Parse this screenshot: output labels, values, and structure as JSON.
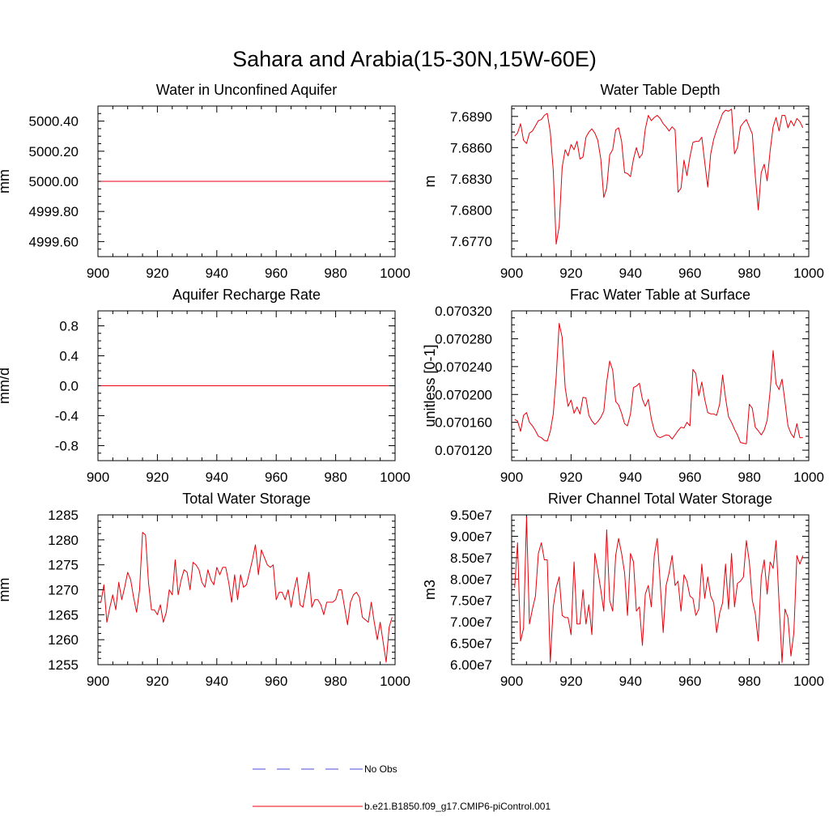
{
  "figure": {
    "title": "Sahara and Arabia(15-30N,15W-60E)"
  },
  "legend": {
    "entries": [
      {
        "label": "No Obs",
        "color": "#4b4bd8",
        "dash": true
      },
      {
        "label": "b.e21.B1850.f09_g17.CMIP6-piControl.001",
        "color": "#e8000b",
        "dash": false
      }
    ]
  },
  "chart_data": [
    {
      "type": "line",
      "title": "Water in Unconfined Aquifer",
      "ylabel": "mm",
      "xlim": [
        900,
        1000
      ],
      "ylim": [
        4999.5,
        5000.5
      ],
      "xticks": [
        900,
        920,
        940,
        960,
        980,
        1000
      ],
      "xtick_labels": [
        "900",
        "920",
        "940",
        "960",
        "980",
        "1000"
      ],
      "yticks": [
        4999.6,
        4999.8,
        5000.0,
        5000.2,
        5000.4
      ],
      "ytick_labels": [
        "4999.60",
        "4999.80",
        "5000.00",
        "5000.20",
        "5000.40"
      ],
      "series": [
        {
          "color": "#e8000b",
          "x_start": 901,
          "x_step": 1,
          "values": [
            5000.0,
            5000.0,
            5000.0,
            5000.0,
            5000.0,
            5000.0,
            5000.0,
            5000.0,
            5000.0,
            5000.0,
            5000.0,
            5000.0,
            5000.0,
            5000.0,
            5000.0,
            5000.0,
            5000.0,
            5000.0,
            5000.0,
            5000.0,
            5000.0,
            5000.0,
            5000.0,
            5000.0,
            5000.0,
            5000.0,
            5000.0,
            5000.0,
            5000.0,
            5000.0,
            5000.0,
            5000.0,
            5000.0,
            5000.0,
            5000.0,
            5000.0,
            5000.0,
            5000.0,
            5000.0,
            5000.0,
            5000.0,
            5000.0,
            5000.0,
            5000.0,
            5000.0,
            5000.0,
            5000.0,
            5000.0,
            5000.0,
            5000.0,
            5000.0,
            5000.0,
            5000.0,
            5000.0,
            5000.0,
            5000.0,
            5000.0,
            5000.0,
            5000.0,
            5000.0,
            5000.0,
            5000.0,
            5000.0,
            5000.0,
            5000.0,
            5000.0,
            5000.0,
            5000.0,
            5000.0,
            5000.0,
            5000.0,
            5000.0,
            5000.0,
            5000.0,
            5000.0,
            5000.0,
            5000.0,
            5000.0,
            5000.0,
            5000.0,
            5000.0,
            5000.0,
            5000.0,
            5000.0,
            5000.0,
            5000.0,
            5000.0,
            5000.0,
            5000.0,
            5000.0,
            5000.0,
            5000.0,
            5000.0,
            5000.0,
            5000.0,
            5000.0,
            5000.0,
            5000.0
          ]
        }
      ]
    },
    {
      "type": "line",
      "title": "Water Table Depth",
      "ylabel": "m",
      "xlim": [
        900,
        1000
      ],
      "ylim": [
        7.6755,
        7.69
      ],
      "xticks": [
        900,
        920,
        940,
        960,
        980,
        1000
      ],
      "xtick_labels": [
        "900",
        "920",
        "940",
        "960",
        "980",
        "1000"
      ],
      "yticks": [
        7.677,
        7.68,
        7.683,
        7.686,
        7.689
      ],
      "ytick_labels": [
        "7.6770",
        "7.6800",
        "7.6830",
        "7.6860",
        "7.6890"
      ],
      "series": [
        {
          "color": "#e8000b",
          "x_start": 901,
          "x_step": 1,
          "values": [
            7.6871,
            7.6874,
            7.6883,
            7.6867,
            7.6864,
            7.6874,
            7.6876,
            7.6881,
            7.6886,
            7.6887,
            7.6891,
            7.6893,
            7.6875,
            7.6838,
            7.6767,
            7.6784,
            7.6841,
            7.6858,
            7.6852,
            7.6863,
            7.6858,
            7.6866,
            7.6849,
            7.6851,
            7.687,
            7.6875,
            7.6878,
            7.6874,
            7.6867,
            7.6849,
            7.6812,
            7.6821,
            7.6853,
            7.6858,
            7.6877,
            7.6879,
            7.6866,
            7.6836,
            7.6835,
            7.6832,
            7.6849,
            7.686,
            7.685,
            7.6854,
            7.6878,
            7.6891,
            7.6886,
            7.6889,
            7.6891,
            7.6888,
            7.6883,
            7.688,
            7.6876,
            7.688,
            7.6877,
            7.6817,
            7.6821,
            7.6848,
            7.6833,
            7.6851,
            7.6865,
            7.6866,
            7.6866,
            7.687,
            7.6846,
            7.6822,
            7.6854,
            7.6868,
            7.6877,
            7.6885,
            7.6893,
            7.6896,
            7.6895,
            7.6897,
            7.6854,
            7.686,
            7.688,
            7.6884,
            7.6887,
            7.688,
            7.6873,
            7.6833,
            7.68,
            7.6836,
            7.6844,
            7.6828,
            7.6857,
            7.688,
            7.6889,
            7.6876,
            7.6891,
            7.6891,
            7.6879,
            7.6886,
            7.6881,
            7.6888,
            7.6885,
            7.6879
          ]
        }
      ]
    },
    {
      "type": "line",
      "title": "Aquifer Recharge Rate",
      "ylabel": "mm/d",
      "xlim": [
        900,
        1000
      ],
      "ylim": [
        -1.0,
        1.0
      ],
      "xticks": [
        900,
        920,
        940,
        960,
        980,
        1000
      ],
      "xtick_labels": [
        "900",
        "920",
        "940",
        "960",
        "980",
        "1000"
      ],
      "yticks": [
        -0.8,
        -0.4,
        0.0,
        0.4,
        0.8
      ],
      "ytick_labels": [
        "-0.8",
        "-0.4",
        "0.0",
        "0.4",
        "0.8"
      ],
      "series": [
        {
          "color": "#e8000b",
          "x_start": 901,
          "x_step": 1,
          "values": [
            0.0,
            0.0,
            0.0,
            0.0,
            0.0,
            0.0,
            0.0,
            0.0,
            0.0,
            0.0,
            0.0,
            0.0,
            0.0,
            0.0,
            0.0,
            0.0,
            0.0,
            0.0,
            0.0,
            0.0,
            0.0,
            0.0,
            0.0,
            0.0,
            0.0,
            0.0,
            0.0,
            0.0,
            0.0,
            0.0,
            0.0,
            0.0,
            0.0,
            0.0,
            0.0,
            0.0,
            0.0,
            0.0,
            0.0,
            0.0,
            0.0,
            0.0,
            0.0,
            0.0,
            0.0,
            0.0,
            0.0,
            0.0,
            0.0,
            0.0,
            0.0,
            0.0,
            0.0,
            0.0,
            0.0,
            0.0,
            0.0,
            0.0,
            0.0,
            0.0,
            0.0,
            0.0,
            0.0,
            0.0,
            0.0,
            0.0,
            0.0,
            0.0,
            0.0,
            0.0,
            0.0,
            0.0,
            0.0,
            0.0,
            0.0,
            0.0,
            0.0,
            0.0,
            0.0,
            0.0,
            0.0,
            0.0,
            0.0,
            0.0,
            0.0,
            0.0,
            0.0,
            0.0,
            0.0,
            0.0,
            0.0,
            0.0,
            0.0,
            0.0,
            0.0,
            0.0,
            0.0,
            0.0
          ]
        }
      ]
    },
    {
      "type": "line",
      "title": "Frac Water Table at Surface",
      "ylabel": "unitless [0-1]",
      "xlim": [
        900,
        1000
      ],
      "ylim": [
        0.070105,
        0.07032
      ],
      "xticks": [
        900,
        920,
        940,
        960,
        980,
        1000
      ],
      "xtick_labels": [
        "900",
        "920",
        "940",
        "960",
        "980",
        "1000"
      ],
      "yticks": [
        0.07012,
        0.07016,
        0.0702,
        0.07024,
        0.07028,
        0.07032
      ],
      "ytick_labels": [
        "0.070120",
        "0.070160",
        "0.070200",
        "0.070240",
        "0.070280",
        "0.070320"
      ],
      "series": [
        {
          "color": "#e8000b",
          "x_start": 901,
          "x_step": 1,
          "values": [
            0.070164,
            0.070162,
            0.070147,
            0.07017,
            0.070174,
            0.07016,
            0.070155,
            0.070148,
            0.07014,
            0.070138,
            0.070134,
            0.070133,
            0.070147,
            0.070172,
            0.070225,
            0.070302,
            0.070282,
            0.07021,
            0.070183,
            0.070192,
            0.070173,
            0.070182,
            0.070172,
            0.070196,
            0.070195,
            0.07017,
            0.070162,
            0.070157,
            0.070161,
            0.070167,
            0.070176,
            0.070218,
            0.070248,
            0.070235,
            0.07019,
            0.070185,
            0.070173,
            0.070158,
            0.070155,
            0.070172,
            0.07021,
            0.070212,
            0.070216,
            0.070193,
            0.070183,
            0.070193,
            0.070165,
            0.070148,
            0.07014,
            0.070138,
            0.07014,
            0.070142,
            0.070141,
            0.070136,
            0.070142,
            0.070148,
            0.070153,
            0.070152,
            0.07016,
            0.070155,
            0.070236,
            0.07023,
            0.070198,
            0.070218,
            0.070193,
            0.070174,
            0.070172,
            0.070172,
            0.07017,
            0.070186,
            0.070228,
            0.070195,
            0.070168,
            0.07016,
            0.07015,
            0.070142,
            0.070131,
            0.07013,
            0.070129,
            0.070186,
            0.07018,
            0.070153,
            0.070148,
            0.070142,
            0.070149,
            0.070163,
            0.070205,
            0.070263,
            0.070215,
            0.070207,
            0.070222,
            0.07019,
            0.070155,
            0.070144,
            0.070138,
            0.070158,
            0.070138,
            0.070138
          ]
        }
      ]
    },
    {
      "type": "line",
      "title": "Total Water Storage",
      "ylabel": "mm",
      "xlim": [
        900,
        1000
      ],
      "ylim": [
        1255,
        1285
      ],
      "xticks": [
        900,
        920,
        940,
        960,
        980,
        1000
      ],
      "xtick_labels": [
        "900",
        "920",
        "940",
        "960",
        "980",
        "1000"
      ],
      "yticks": [
        1255,
        1260,
        1265,
        1270,
        1275,
        1280,
        1285
      ],
      "ytick_labels": [
        "1255",
        "1260",
        "1265",
        "1270",
        "1275",
        "1280",
        "1285"
      ],
      "series": [
        {
          "color": "#e8000b",
          "x_start": 901,
          "x_step": 1,
          "values": [
            1267.5,
            1271.0,
            1263.5,
            1266.5,
            1269.0,
            1266.0,
            1271.5,
            1268.0,
            1270.5,
            1273.5,
            1272.0,
            1268.5,
            1265.5,
            1270.0,
            1281.5,
            1281.0,
            1271.5,
            1266.0,
            1266.0,
            1265.0,
            1267.0,
            1263.5,
            1265.5,
            1270.0,
            1269.0,
            1276.0,
            1269.0,
            1272.0,
            1274.0,
            1273.5,
            1270.0,
            1275.5,
            1275.0,
            1274.0,
            1271.5,
            1270.5,
            1274.0,
            1272.0,
            1271.0,
            1274.5,
            1273.0,
            1274.5,
            1274.5,
            1271.5,
            1267.5,
            1273.0,
            1268.0,
            1273.0,
            1270.5,
            1271.0,
            1273.5,
            1276.0,
            1279.0,
            1273.0,
            1278.0,
            1276.5,
            1275.0,
            1274.5,
            1275.0,
            1268.0,
            1269.5,
            1269.5,
            1268.0,
            1270.0,
            1266.5,
            1270.0,
            1272.5,
            1267.0,
            1266.5,
            1270.0,
            1273.5,
            1266.5,
            1268.0,
            1268.0,
            1267.0,
            1265.0,
            1267.5,
            1267.5,
            1267.5,
            1268.0,
            1270.0,
            1270.0,
            1266.5,
            1263.0,
            1267.5,
            1269.0,
            1269.5,
            1268.5,
            1264.5,
            1264.0,
            1263.5,
            1267.5,
            1263.5,
            1260.0,
            1263.5,
            1259.5,
            1255.5,
            1262.5,
            1264.5
          ]
        }
      ]
    },
    {
      "type": "line",
      "title": "River Channel Total Water Storage",
      "ylabel": "m3",
      "xlim": [
        900,
        1000
      ],
      "ylim": [
        60000000,
        95000000
      ],
      "xticks": [
        900,
        920,
        940,
        960,
        980,
        1000
      ],
      "xtick_labels": [
        "900",
        "920",
        "940",
        "960",
        "980",
        "1000"
      ],
      "yticks": [
        60000000,
        65000000,
        70000000,
        75000000,
        80000000,
        85000000,
        90000000,
        95000000
      ],
      "ytick_labels": [
        "6.00e7",
        "6.50e7",
        "7.00e7",
        "7.50e7",
        "8.00e7",
        "8.50e7",
        "9.00e7",
        "9.50e7"
      ],
      "series": [
        {
          "color": "#e8000b",
          "x_start": 901,
          "x_step": 1,
          "values": [
            78000000,
            88500000,
            65500000,
            68500000,
            94500000,
            69500000,
            73000000,
            76000000,
            86000000,
            88500000,
            84500000,
            84500000,
            60500000,
            73500000,
            78000000,
            80500000,
            71500000,
            71000000,
            71000000,
            67000000,
            84000000,
            69500000,
            69500000,
            77500000,
            69500000,
            74000000,
            67000000,
            86000000,
            82000000,
            77500000,
            72500000,
            91500000,
            75000000,
            72500000,
            85500000,
            89500000,
            86000000,
            81500000,
            71500000,
            86000000,
            84000000,
            72500000,
            73500000,
            64500000,
            76500000,
            78500000,
            73500000,
            85500000,
            89500000,
            79000000,
            67500000,
            78500000,
            81500000,
            85500000,
            78500000,
            79500000,
            72500000,
            81000000,
            79500000,
            76000000,
            75500000,
            71500000,
            73000000,
            83500000,
            75500000,
            80500000,
            76000000,
            74500000,
            67500000,
            72000000,
            74500000,
            83500000,
            73000000,
            86000000,
            73500000,
            79000000,
            79500000,
            80500000,
            89000000,
            84000000,
            75000000,
            72000000,
            65500000,
            80500000,
            84500000,
            76500000,
            84000000,
            82500000,
            89000000,
            74500000,
            60500000,
            73000000,
            71000000,
            62000000,
            67500000,
            85500000,
            83500000,
            85500000
          ]
        }
      ]
    }
  ]
}
